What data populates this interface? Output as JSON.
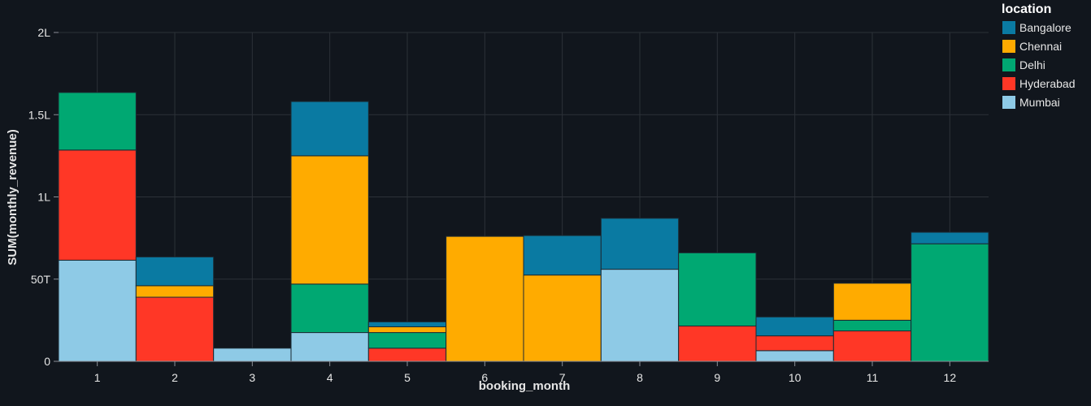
{
  "chart_data": {
    "type": "bar",
    "stacked": true,
    "xlabel": "booking_month",
    "ylabel": "SUM(monthly_revenue)",
    "ylim": [
      0,
      200000
    ],
    "y_ticks": [
      {
        "value": 0,
        "label": "0"
      },
      {
        "value": 50000,
        "label": "50T"
      },
      {
        "value": 100000,
        "label": "1L"
      },
      {
        "value": 150000,
        "label": "1.5L"
      },
      {
        "value": 200000,
        "label": "2L"
      }
    ],
    "categories": [
      "1",
      "2",
      "3",
      "4",
      "5",
      "6",
      "7",
      "8",
      "9",
      "10",
      "11",
      "12"
    ],
    "legend_title": "location",
    "legend_position": "right",
    "grid": true,
    "series": [
      {
        "name": "Mumbai",
        "color": "#8ecae6",
        "values": [
          61500,
          0,
          8000,
          17500,
          0,
          0,
          0,
          56000,
          0,
          6500,
          0,
          0
        ]
      },
      {
        "name": "Hyderabad",
        "color": "#ff3726",
        "values": [
          67000,
          39000,
          0,
          0,
          8000,
          0,
          0,
          0,
          21500,
          9000,
          18500,
          0
        ]
      },
      {
        "name": "Delhi",
        "color": "#00a872",
        "values": [
          35000,
          0,
          0,
          29500,
          9500,
          0,
          0,
          0,
          44500,
          0,
          6500,
          71500
        ]
      },
      {
        "name": "Chennai",
        "color": "#ffab00",
        "values": [
          0,
          7000,
          0,
          78000,
          3500,
          76000,
          52500,
          0,
          0,
          0,
          22500,
          0
        ]
      },
      {
        "name": "Bangalore",
        "color": "#0a7aa2",
        "values": [
          0,
          17500,
          0,
          33000,
          3000,
          0,
          24000,
          31000,
          0,
          11500,
          0,
          7000
        ]
      }
    ],
    "legend_order": [
      "Bangalore",
      "Chennai",
      "Delhi",
      "Hyderabad",
      "Mumbai"
    ]
  }
}
